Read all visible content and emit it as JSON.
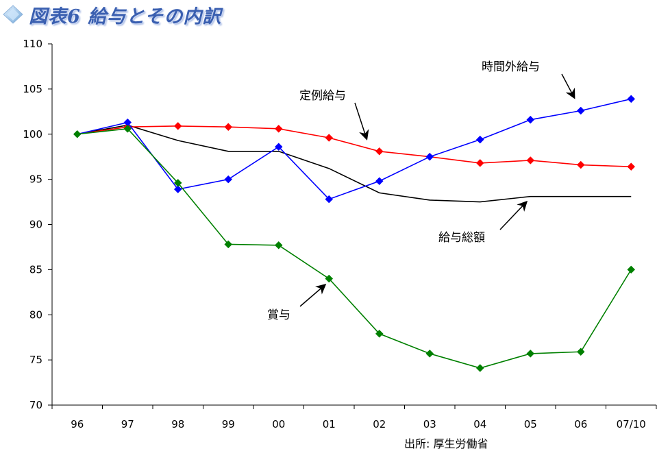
{
  "header": {
    "title": "図表6 給与とその内訳"
  },
  "source": "出所: 厚生労働省",
  "chart_data": {
    "type": "line",
    "title": "図表6 給与とその内訳",
    "categories": [
      "96",
      "97",
      "98",
      "99",
      "00",
      "01",
      "02",
      "03",
      "04",
      "05",
      "06",
      "07/10"
    ],
    "ylim": [
      70,
      110
    ],
    "yticks": [
      70,
      75,
      80,
      85,
      90,
      95,
      100,
      105,
      110
    ],
    "grid": false,
    "series": [
      {
        "name": "時間外給与",
        "color": "#0000ff",
        "marker": "diamond",
        "values": [
          100,
          101.3,
          93.9,
          95.0,
          98.6,
          92.8,
          94.8,
          97.5,
          99.4,
          101.6,
          102.6,
          103.9
        ]
      },
      {
        "name": "定例給与",
        "color": "#ff0000",
        "marker": "diamond",
        "values": [
          100,
          100.8,
          100.9,
          100.8,
          100.6,
          99.6,
          98.1,
          97.5,
          96.8,
          97.1,
          96.6,
          96.4
        ]
      },
      {
        "name": "給与総額",
        "color": "#000000",
        "marker": "none",
        "values": [
          100,
          101.0,
          99.3,
          98.1,
          98.1,
          96.2,
          93.5,
          92.7,
          92.5,
          93.1,
          93.1,
          93.1
        ]
      },
      {
        "name": "賞与",
        "color": "#008000",
        "marker": "diamond",
        "values": [
          100,
          100.6,
          94.6,
          87.8,
          87.7,
          84.0,
          77.9,
          75.7,
          74.1,
          75.7,
          75.9,
          85.0
        ]
      }
    ],
    "annotations": [
      "時間外給与",
      "定例給与",
      "給与総額",
      "賞与"
    ]
  }
}
